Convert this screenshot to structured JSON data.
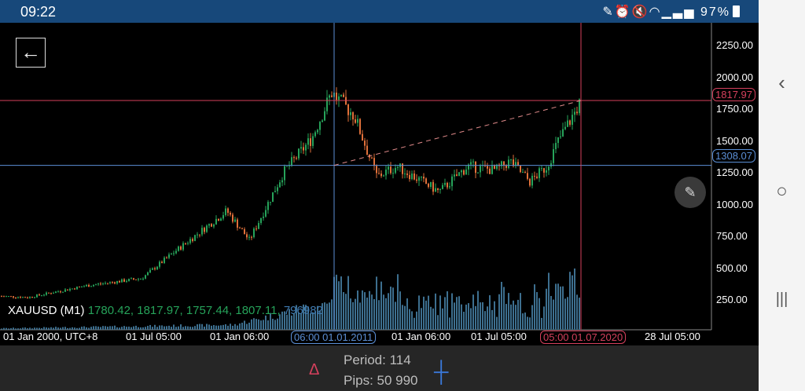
{
  "status_bar": {
    "time": "09:22",
    "icons": [
      "edit-icon",
      "alarm-icon",
      "mute-icon",
      "wifi-icon",
      "signal-icon",
      "signal-icon"
    ],
    "battery": "97%"
  },
  "nav_bar": {
    "back": "‹",
    "home": "○",
    "recents": "|||"
  },
  "chart": {
    "symbol_line": {
      "symbol": "XAUUSD (M1)",
      "open": "1780.42,",
      "high": "1817.97,",
      "low": "1757.44,",
      "close": "1807.11,",
      "volume": "796982"
    },
    "price_labels": [
      "2250.00",
      "2000.00",
      "1750.00",
      "1500.00",
      "1250.00",
      "1000.00",
      "750.00",
      "500.00",
      "250.00"
    ],
    "time_labels": [
      "01 Jan 2000, UTC+8",
      "01 Jul 05:00",
      "01 Jan 06:00",
      "01 Jan 06:00",
      "01 Jul 05:00",
      "28 Jul 05:00"
    ],
    "crosshair_start": {
      "price": "1308.07",
      "time": "06:00 01.01.2011",
      "color": "#5b8fd6"
    },
    "crosshair_end": {
      "price": "1817.97",
      "time": "05:00 01.07.2020",
      "color": "#d6405d"
    },
    "colors": {
      "bull": "#26a35a",
      "bear": "#e0703a",
      "volume": "#3d6f8f"
    }
  },
  "chart_data": {
    "type": "candlestick",
    "ylim": [
      0,
      2400
    ],
    "price_path": [
      [
        2000,
        280
      ],
      [
        2001,
        270
      ],
      [
        2003,
        360
      ],
      [
        2005,
        420
      ],
      [
        2006,
        600
      ],
      [
        2008,
        950
      ],
      [
        2008.8,
        720
      ],
      [
        2010,
        1250
      ],
      [
        2011,
        1520
      ],
      [
        2011.7,
        1880
      ],
      [
        2012.5,
        1700
      ],
      [
        2013.3,
        1220
      ],
      [
        2014,
        1300
      ],
      [
        2015.5,
        1100
      ],
      [
        2016.5,
        1300
      ],
      [
        2017.5,
        1270
      ],
      [
        2018,
        1340
      ],
      [
        2018.7,
        1180
      ],
      [
        2019.3,
        1300
      ],
      [
        2019.7,
        1500
      ],
      [
        2020.5,
        1810
      ]
    ]
  },
  "bottom": {
    "period": "Period: 114",
    "pips": "Pips: 50 990"
  }
}
